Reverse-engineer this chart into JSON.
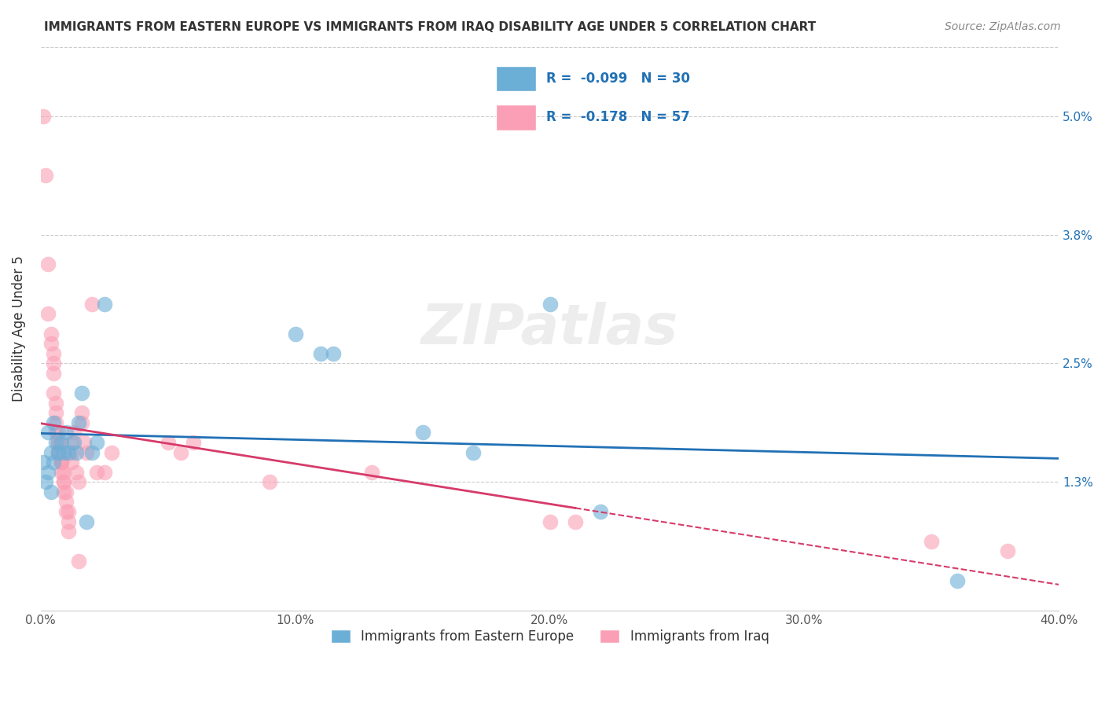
{
  "title": "IMMIGRANTS FROM EASTERN EUROPE VS IMMIGRANTS FROM IRAQ DISABILITY AGE UNDER 5 CORRELATION CHART",
  "source": "Source: ZipAtlas.com",
  "xlabel_bottom": "",
  "ylabel": "Disability Age Under 5",
  "legend_label_blue": "Immigrants from Eastern Europe",
  "legend_label_pink": "Immigrants from Iraq",
  "r_blue": -0.099,
  "n_blue": 30,
  "r_pink": -0.178,
  "n_pink": 57,
  "xlim": [
    0.0,
    0.4
  ],
  "ylim": [
    0.0,
    0.057
  ],
  "xtick_vals": [
    0.0,
    0.1,
    0.2,
    0.3,
    0.4
  ],
  "xtick_labels": [
    "0.0%",
    "10.0%",
    "20.0%",
    "30.0%",
    "40.0%"
  ],
  "ytick_vals": [
    0.013,
    0.025,
    0.038,
    0.05
  ],
  "ytick_labels": [
    "1.3%",
    "2.5%",
    "3.8%",
    "5.0%"
  ],
  "watermark": "ZIPatlas",
  "blue_color": "#6baed6",
  "pink_color": "#fa9fb5",
  "blue_line_color": "#2171b5",
  "pink_line_color": "#d63b6a",
  "blue_scatter": [
    [
      0.001,
      0.015
    ],
    [
      0.002,
      0.013
    ],
    [
      0.003,
      0.018
    ],
    [
      0.003,
      0.014
    ],
    [
      0.004,
      0.016
    ],
    [
      0.004,
      0.012
    ],
    [
      0.005,
      0.019
    ],
    [
      0.005,
      0.015
    ],
    [
      0.006,
      0.017
    ],
    [
      0.007,
      0.016
    ],
    [
      0.008,
      0.017
    ],
    [
      0.009,
      0.016
    ],
    [
      0.01,
      0.018
    ],
    [
      0.011,
      0.016
    ],
    [
      0.013,
      0.017
    ],
    [
      0.014,
      0.016
    ],
    [
      0.015,
      0.019
    ],
    [
      0.016,
      0.022
    ],
    [
      0.018,
      0.009
    ],
    [
      0.02,
      0.016
    ],
    [
      0.022,
      0.017
    ],
    [
      0.025,
      0.031
    ],
    [
      0.1,
      0.028
    ],
    [
      0.11,
      0.026
    ],
    [
      0.115,
      0.026
    ],
    [
      0.15,
      0.018
    ],
    [
      0.17,
      0.016
    ],
    [
      0.2,
      0.031
    ],
    [
      0.22,
      0.01
    ],
    [
      0.36,
      0.003
    ]
  ],
  "pink_scatter": [
    [
      0.001,
      0.05
    ],
    [
      0.002,
      0.044
    ],
    [
      0.003,
      0.035
    ],
    [
      0.003,
      0.03
    ],
    [
      0.004,
      0.028
    ],
    [
      0.004,
      0.027
    ],
    [
      0.005,
      0.026
    ],
    [
      0.005,
      0.025
    ],
    [
      0.005,
      0.024
    ],
    [
      0.005,
      0.022
    ],
    [
      0.006,
      0.021
    ],
    [
      0.006,
      0.02
    ],
    [
      0.006,
      0.019
    ],
    [
      0.006,
      0.018
    ],
    [
      0.007,
      0.018
    ],
    [
      0.007,
      0.017
    ],
    [
      0.007,
      0.017
    ],
    [
      0.007,
      0.016
    ],
    [
      0.007,
      0.016
    ],
    [
      0.008,
      0.015
    ],
    [
      0.008,
      0.015
    ],
    [
      0.008,
      0.015
    ],
    [
      0.008,
      0.014
    ],
    [
      0.009,
      0.014
    ],
    [
      0.009,
      0.013
    ],
    [
      0.009,
      0.013
    ],
    [
      0.009,
      0.012
    ],
    [
      0.01,
      0.012
    ],
    [
      0.01,
      0.011
    ],
    [
      0.01,
      0.01
    ],
    [
      0.011,
      0.01
    ],
    [
      0.011,
      0.009
    ],
    [
      0.011,
      0.008
    ],
    [
      0.012,
      0.017
    ],
    [
      0.012,
      0.016
    ],
    [
      0.012,
      0.015
    ],
    [
      0.013,
      0.018
    ],
    [
      0.014,
      0.014
    ],
    [
      0.015,
      0.013
    ],
    [
      0.015,
      0.005
    ],
    [
      0.016,
      0.02
    ],
    [
      0.016,
      0.019
    ],
    [
      0.017,
      0.017
    ],
    [
      0.018,
      0.016
    ],
    [
      0.02,
      0.031
    ],
    [
      0.022,
      0.014
    ],
    [
      0.025,
      0.014
    ],
    [
      0.028,
      0.016
    ],
    [
      0.05,
      0.017
    ],
    [
      0.055,
      0.016
    ],
    [
      0.06,
      0.017
    ],
    [
      0.09,
      0.013
    ],
    [
      0.13,
      0.014
    ],
    [
      0.2,
      0.009
    ],
    [
      0.21,
      0.009
    ],
    [
      0.35,
      0.007
    ],
    [
      0.38,
      0.006
    ]
  ]
}
